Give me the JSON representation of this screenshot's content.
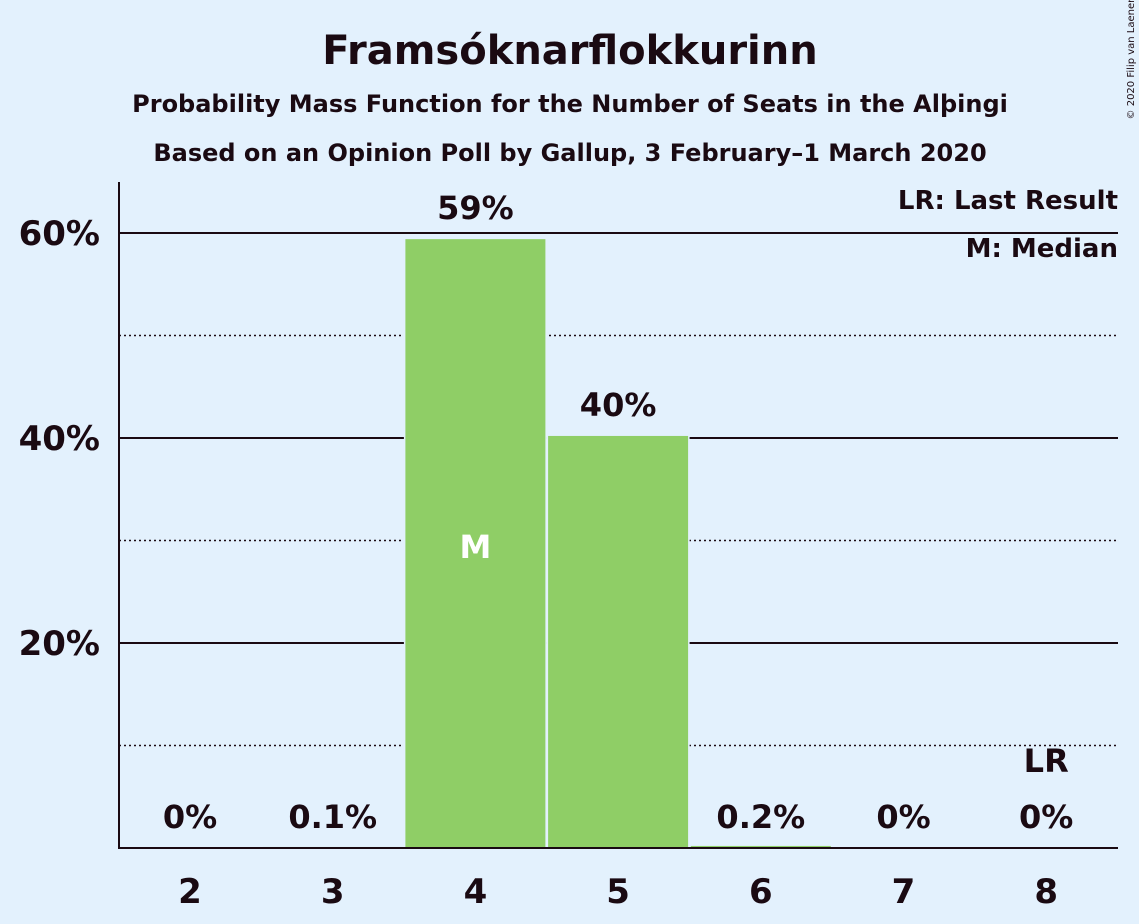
{
  "chart_data": {
    "type": "bar",
    "title": "Framsóknarflokkurinn",
    "subtitle_1": "Probability Mass Function for the Number of Seats in the Alþingi",
    "subtitle_2": "Based on an Opinion Poll by Gallup, 3 February–1 March 2020",
    "categories": [
      "2",
      "3",
      "4",
      "5",
      "6",
      "7",
      "8"
    ],
    "values": [
      0,
      0.1,
      59.4,
      40.2,
      0.2,
      0,
      0
    ],
    "value_labels": [
      "0%",
      "0.1%",
      "59%",
      "40%",
      "0.2%",
      "0%",
      "0%"
    ],
    "ylim": [
      0,
      65
    ],
    "y_ticks_major": [
      {
        "value": 20,
        "label": "20%"
      },
      {
        "value": 40,
        "label": "40%"
      },
      {
        "value": 60,
        "label": "60%"
      }
    ],
    "y_ticks_minor": [
      10,
      30,
      50
    ],
    "median_category": "4",
    "median_marker": "M",
    "last_result_category": "8",
    "last_result_marker": "LR",
    "legend": [
      "LR: Last Result",
      "M: Median"
    ],
    "bar_color": "#8fce66",
    "grid": true,
    "copyright": "© 2020 Filip van Laenen"
  }
}
